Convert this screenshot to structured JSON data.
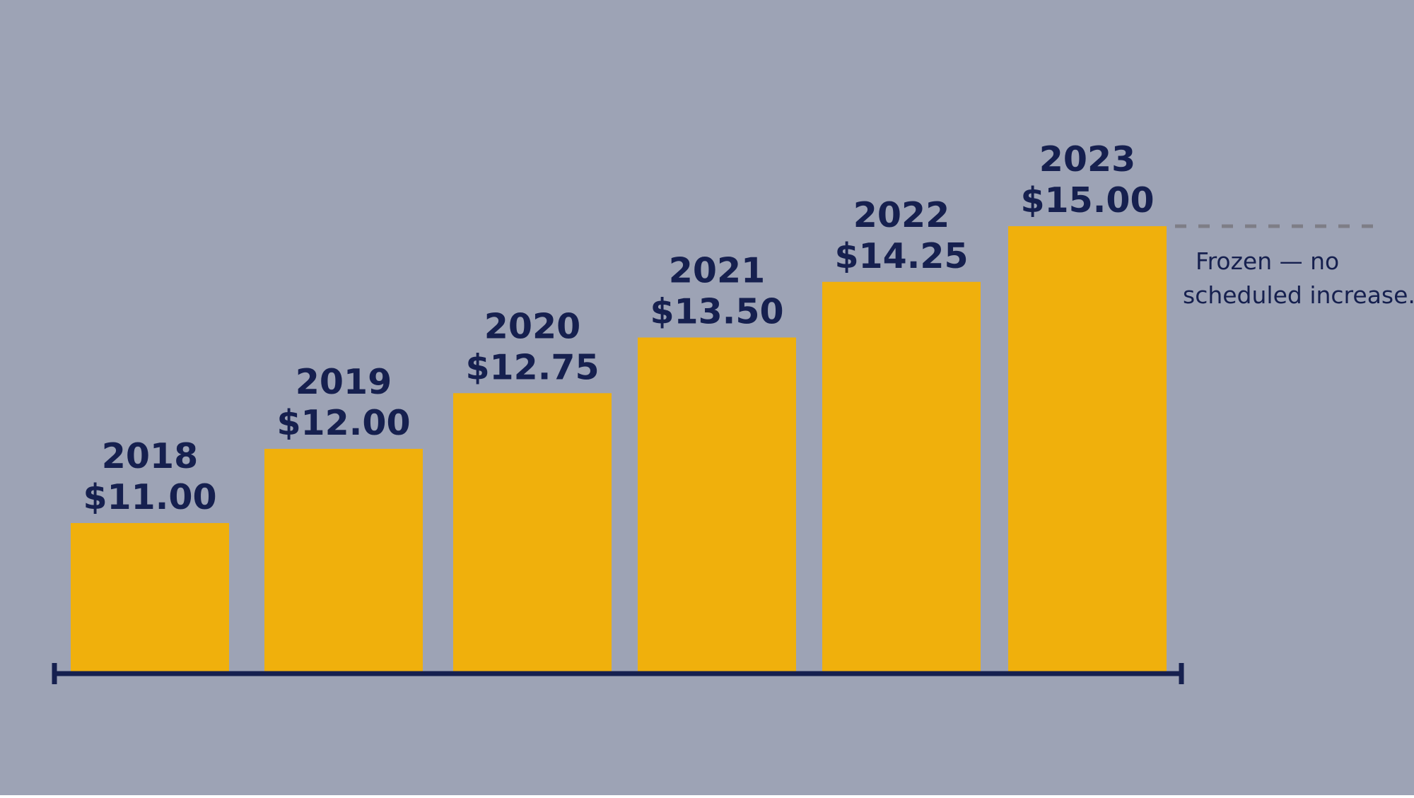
{
  "colors": {
    "background": "#9DA3B5",
    "bar": "#F0B00C",
    "text": "#16204F",
    "axis": "#16204F",
    "reference_line": "#7E7E86"
  },
  "chart_data": {
    "type": "bar",
    "title": "",
    "xlabel": "",
    "ylabel": "",
    "categories": [
      "2018",
      "2019",
      "2020",
      "2021",
      "2022",
      "2023"
    ],
    "values": [
      11.0,
      12.0,
      12.75,
      13.5,
      14.25,
      15.0
    ],
    "value_labels": [
      "$11.00",
      "$12.00",
      "$12.75",
      "$13.50",
      "$14.25",
      "$15.00"
    ],
    "ylim": [
      9.0,
      15.0
    ],
    "grid": false,
    "legend": "none",
    "y_axis_visible": false,
    "reference_line": {
      "value": 15.0,
      "style": "dashed",
      "position": "right of last bar"
    },
    "annotation": {
      "lines": [
        "Frozen — no",
        "scheduled increase."
      ],
      "position": "right, below reference line"
    }
  }
}
